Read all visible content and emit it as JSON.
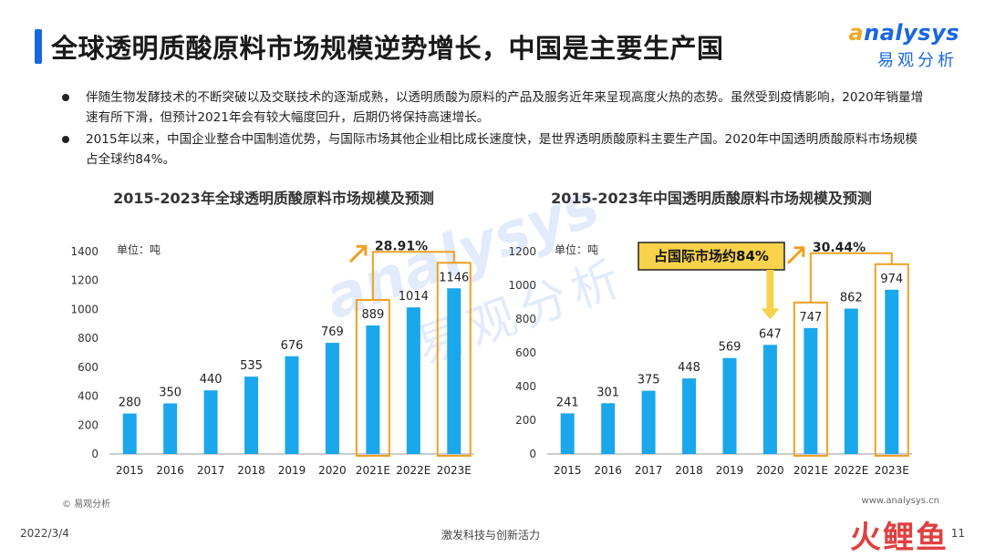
{
  "header": {
    "title": "全球透明质酸原料市场规模逆势增长，中国是主要生产国",
    "logo_en_prefix": "a",
    "logo_en_rest": "nalysys",
    "logo_cn": "易观分析"
  },
  "bullets": [
    "伴随生物发酵技术的不断突破以及交联技术的逐渐成熟，以透明质酸为原料的产品及服务近年来呈现高度火热的态势。虽然受到疫情影响，2020年销量增速有所下滑，但预计2021年会有较大幅度回升，后期仍将保持高速增长。",
    "2015年以来，中国企业整合中国制造优势，与国际市场其他企业相比成长速度快，是世界透明质酸原料主要生产国。2020年中国透明质酸原料市场规模占全球约84%。"
  ],
  "watermark": {
    "en": "analysys",
    "cn": "易观分析"
  },
  "chart_data": [
    {
      "type": "bar",
      "title": "2015-2023年全球透明质酸原料市场规模及预测",
      "unit_label": "单位：吨",
      "categories": [
        "2015",
        "2016",
        "2017",
        "2018",
        "2019",
        "2020",
        "2021E",
        "2022E",
        "2023E"
      ],
      "values": [
        280,
        350,
        440,
        535,
        676,
        769,
        889,
        1014,
        1146
      ],
      "ylim": [
        0,
        1400
      ],
      "yticks": [
        0,
        200,
        400,
        600,
        800,
        1000,
        1200,
        1400
      ],
      "highlighted": [
        "2021E",
        "2023E"
      ],
      "growth_label": "28.91%",
      "bar_color": "#1aa7ec",
      "highlight_color": "#f0a020"
    },
    {
      "type": "bar",
      "title": "2015-2023年中国透明质酸原料市场规模及预测",
      "unit_label": "单位：吨",
      "categories": [
        "2015",
        "2016",
        "2017",
        "2018",
        "2019",
        "2020",
        "2021E",
        "2022E",
        "2023E"
      ],
      "values": [
        241,
        301,
        375,
        448,
        569,
        647,
        747,
        862,
        974
      ],
      "ylim": [
        0,
        1200
      ],
      "yticks": [
        0,
        200,
        400,
        600,
        800,
        1000,
        1200
      ],
      "highlighted": [
        "2021E",
        "2023E"
      ],
      "growth_label": "30.44%",
      "callout": "占国际市场约84%",
      "bar_color": "#1aa7ec",
      "highlight_color": "#f0a020"
    }
  ],
  "footer": {
    "copyright": "© 易观分析",
    "url": "www.analysys.cn",
    "date": "2022/3/4",
    "tagline": "激发科技与创新活力",
    "page": "11",
    "brand": "火鲤鱼"
  }
}
